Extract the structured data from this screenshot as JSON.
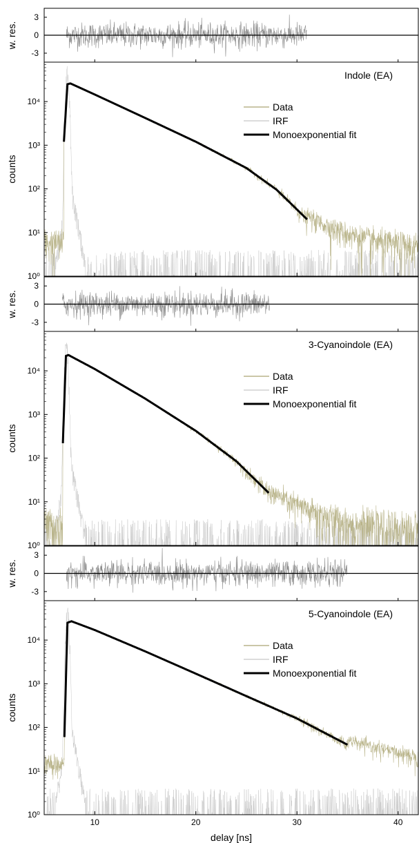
{
  "chart_data": [
    {
      "type": "line",
      "title": "Indole (EA)",
      "xlabel": "delay [ns]",
      "ylabel": "counts",
      "residual_ylabel": "w. res.",
      "residual_ylim": [
        -4.5,
        4.5
      ],
      "residual_yticks": [
        3,
        0,
        -3
      ],
      "residual_yticklabels": [
        "3",
        "0",
        "-3"
      ],
      "xlim": [
        5,
        42
      ],
      "ylim": [
        1,
        80000
      ],
      "yscale": "log",
      "yticks": [
        1,
        10,
        100,
        1000,
        10000
      ],
      "yticklabels": [
        "10⁰",
        "10¹",
        "10²",
        "10³",
        "10⁴"
      ],
      "legend": [
        "Data",
        "IRF",
        "Monoexponential fit"
      ],
      "legend_position": "upper-right",
      "colors": {
        "Data": "#b9b48a",
        "IRF": "#c8c8c8",
        "fit": "#000000",
        "residuals": "#8c8c8c"
      },
      "background_counts": 6,
      "irf_peak": 7.3,
      "series": [
        {
          "name": "Monoexponential fit",
          "x": [
            6.95,
            7.3,
            7.6,
            10,
            15,
            20,
            25,
            28,
            31
          ],
          "y": [
            1200,
            25000,
            26000,
            14500,
            4200,
            1200,
            300,
            95,
            20
          ]
        }
      ],
      "residual_range": [
        7.2,
        31
      ]
    },
    {
      "type": "line",
      "title": "3-Cyanoindole (EA)",
      "xlabel": "delay [ns]",
      "ylabel": "counts",
      "residual_ylabel": "w. res.",
      "residual_ylim": [
        -4.5,
        4.5
      ],
      "residual_yticks": [
        3,
        0,
        -3
      ],
      "residual_yticklabels": [
        "3",
        "0",
        "-3"
      ],
      "xlim": [
        5,
        42
      ],
      "ylim": [
        1,
        80000
      ],
      "yscale": "log",
      "yticks": [
        1,
        10,
        100,
        1000,
        10000
      ],
      "yticklabels": [
        "10⁰",
        "10¹",
        "10²",
        "10³",
        "10⁴"
      ],
      "legend": [
        "Data",
        "IRF",
        "Monoexponential fit"
      ],
      "legend_position": "upper-right",
      "colors": {
        "Data": "#b9b48a",
        "IRF": "#c8c8c8",
        "fit": "#000000",
        "residuals": "#8c8c8c"
      },
      "background_counts": 3,
      "irf_peak": 7.2,
      "series": [
        {
          "name": "Monoexponential fit",
          "x": [
            6.85,
            7.15,
            7.4,
            10,
            15,
            20,
            24,
            27.2
          ],
          "y": [
            220,
            22000,
            23000,
            11000,
            2300,
            420,
            85,
            16
          ]
        }
      ],
      "residual_range": [
        6.8,
        27.3
      ]
    },
    {
      "type": "line",
      "title": "5-Cyanoindole (EA)",
      "xlabel": "delay [ns]",
      "ylabel": "counts",
      "residual_ylabel": "w. res.",
      "residual_ylim": [
        -4.5,
        4.5
      ],
      "residual_yticks": [
        3,
        0,
        -3
      ],
      "residual_yticklabels": [
        "3",
        "0",
        "-3"
      ],
      "xlim": [
        5,
        42
      ],
      "ylim": [
        1,
        80000
      ],
      "yscale": "log",
      "yticks": [
        1,
        10,
        100,
        1000,
        10000
      ],
      "yticklabels": [
        "10⁰",
        "10¹",
        "10²",
        "10³",
        "10⁴"
      ],
      "xticks": [
        10,
        20,
        30,
        40
      ],
      "xticklabels": [
        "10",
        "20",
        "30",
        "40"
      ],
      "legend": [
        "Data",
        "IRF",
        "Monoexponential fit"
      ],
      "legend_position": "upper-right",
      "colors": {
        "Data": "#b9b48a",
        "IRF": "#c8c8c8",
        "fit": "#000000",
        "residuals": "#8c8c8c"
      },
      "background_counts": 15,
      "irf_peak": 7.3,
      "series": [
        {
          "name": "Monoexponential fit",
          "x": [
            7.0,
            7.3,
            7.7,
            10,
            15,
            20,
            25,
            30,
            35
          ],
          "y": [
            60,
            25000,
            27000,
            17000,
            5500,
            1700,
            520,
            160,
            40
          ]
        }
      ],
      "residual_range": [
        7.2,
        35
      ]
    }
  ]
}
